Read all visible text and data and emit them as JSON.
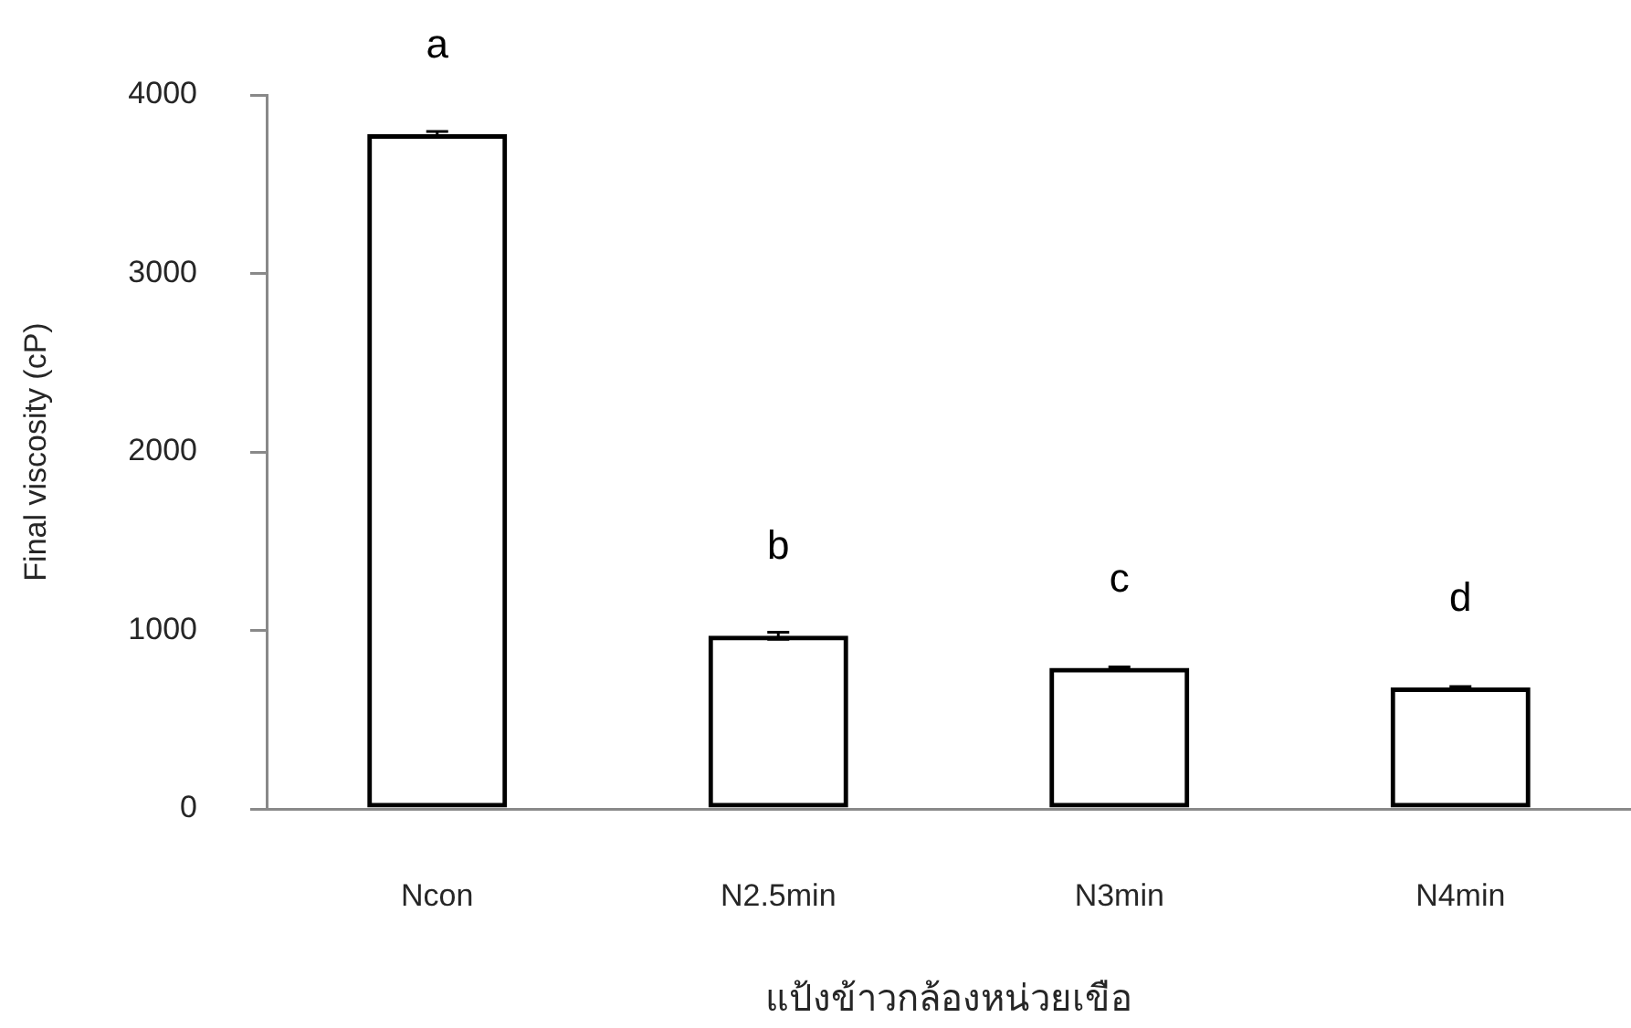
{
  "chart_data": {
    "type": "bar",
    "xlabel": "แป้งข้าวกล้องหน่วยเขือ",
    "ylabel": "Final viscosity (cP)",
    "categories": [
      "Ncon",
      "N2.5min",
      "N3min",
      "N4min"
    ],
    "values": [
      3780,
      970,
      790,
      680
    ],
    "errors": [
      15,
      20,
      5,
      5
    ],
    "color": "#000000",
    "ylim": [
      0,
      4000
    ],
    "yticks": [
      0,
      1000,
      2000,
      3000,
      4000
    ],
    "annotations": [
      {
        "text": "a",
        "x": "Ncon",
        "y": 3780
      },
      {
        "text": "b",
        "x": "N2.5min",
        "y": 970
      },
      {
        "text": "c",
        "x": "N3min",
        "y": 790
      },
      {
        "text": "d",
        "x": "N4min",
        "y": 680
      }
    ]
  }
}
